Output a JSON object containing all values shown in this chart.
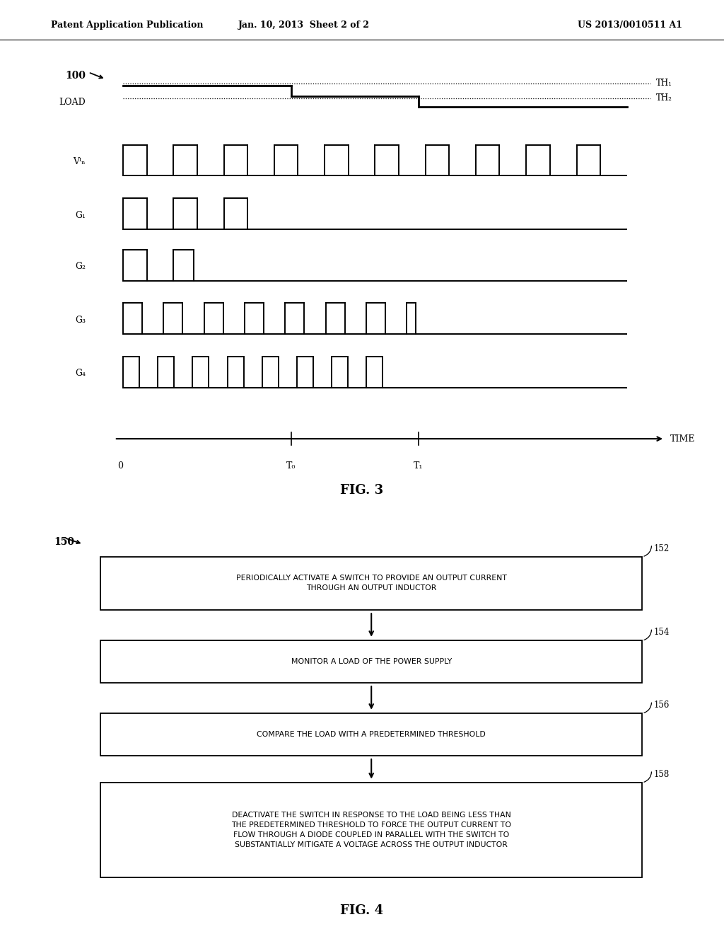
{
  "header_left": "Patent Application Publication",
  "header_mid": "Jan. 10, 2013  Sheet 2 of 2",
  "header_right": "US 2013/0010511 A1",
  "fig3_label": "FIG. 3",
  "fig4_label": "FIG. 4",
  "diagram_label": "100",
  "flowchart_label": "150",
  "time_label": "TIME",
  "TH1_label": "TH₁",
  "TH2_label": "TH₂",
  "bg_color": "#ffffff",
  "line_color": "#000000"
}
